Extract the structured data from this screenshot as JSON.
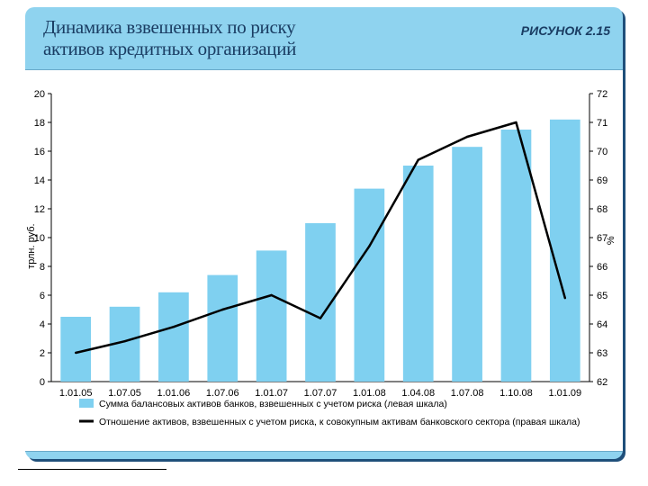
{
  "header": {
    "title_line1": "Динамика взвешенных по риску",
    "title_line2": "активов кредитных организаций",
    "figure_label": "РИСУНОК 2.15"
  },
  "colors": {
    "panel": "#8fd3ef",
    "bar": "#7fd0f0",
    "line": "#000000"
  },
  "chart_data": {
    "type": "bar",
    "categories": [
      "1.01.05",
      "1.07.05",
      "1.01.06",
      "1.07.06",
      "1.01.07",
      "1.07.07",
      "1.01.08",
      "1.04.08",
      "1.07.08",
      "1.10.08",
      "1.01.09"
    ],
    "series": [
      {
        "name": "Сумма балансовых активов банков, взвешенных с учетом риска (левая шкала)",
        "type": "bar",
        "axis": "left",
        "values": [
          4.5,
          5.2,
          6.2,
          7.4,
          9.1,
          11.0,
          13.4,
          15.0,
          16.3,
          17.5,
          18.2
        ]
      },
      {
        "name": "Отношение активов, взвешенных с учетом риска, к совокупным активам банковского сектора (правая шкала)",
        "type": "line",
        "axis": "right",
        "values": [
          63.0,
          63.4,
          63.9,
          64.5,
          65.0,
          64.2,
          66.7,
          69.7,
          70.5,
          71.0,
          64.9
        ]
      }
    ],
    "ylabel_left": "трлн. руб.",
    "ylabel_right": "%",
    "ylim_left": [
      0,
      20
    ],
    "ylim_right": [
      62,
      72
    ],
    "yticks_left": [
      "0",
      "2",
      "4",
      "6",
      "8",
      "10",
      "12",
      "14",
      "16",
      "18",
      "20"
    ],
    "yticks_right": [
      "62",
      "63",
      "64",
      "65",
      "66",
      "67",
      "68",
      "69",
      "70",
      "71",
      "72"
    ],
    "grid": false,
    "legend_position": "bottom"
  }
}
